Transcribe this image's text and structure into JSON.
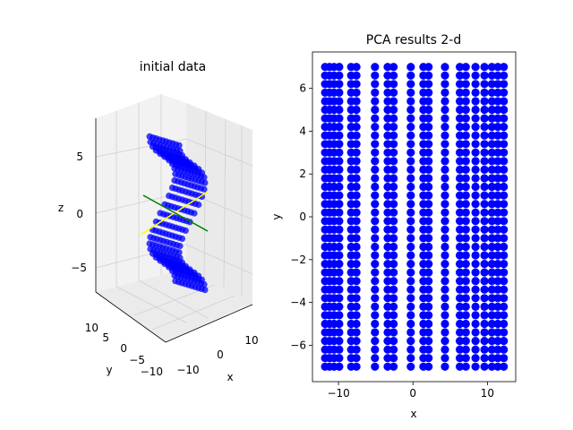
{
  "chart_data": [
    {
      "type": "scatter",
      "projection": "3d",
      "title": "initial data",
      "xlabel": "x",
      "ylabel": "y",
      "zlabel": "z",
      "xticks": [
        "−10",
        "0",
        "10"
      ],
      "yticks": [
        "−10",
        "−5",
        "0",
        "5",
        "10"
      ],
      "zticks": [
        "−5",
        "0",
        "5"
      ],
      "marker_color": "#0000ff",
      "principal_axes_colors": [
        "#ffff00",
        "#008000"
      ],
      "grid": true,
      "shape": "S-curve surface: z from about −7 to 7, points stacked in layers along one horizontal axis"
    },
    {
      "type": "scatter",
      "title": "PCA results 2-d",
      "xlabel": "x",
      "ylabel": "y",
      "xlim": [
        -13.5,
        13.8
      ],
      "ylim": [
        -7.7,
        7.7
      ],
      "xticks": [
        -10,
        0,
        10
      ],
      "yticks": [
        -6,
        -4,
        -2,
        0,
        2,
        4,
        6
      ],
      "marker_color": "#0000ff",
      "x_columns": [
        -11.8,
        -11.2,
        -10.6,
        -9.9,
        -8.3,
        -7.6,
        -5.1,
        -3.4,
        -2.6,
        -0.3,
        1.4,
        2.1,
        4.3,
        6.3,
        7.1,
        8.4,
        9.6,
        10.6,
        11.4,
        12.2
      ],
      "y_range": [
        -7.0,
        7.0
      ],
      "points_per_column": 36
    }
  ]
}
